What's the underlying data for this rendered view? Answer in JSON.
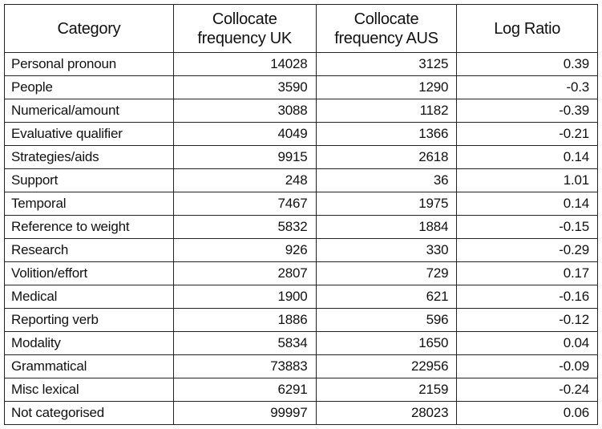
{
  "table": {
    "headers": [
      "Category",
      "Collocate frequency UK",
      "Collocate frequency AUS",
      "Log Ratio"
    ],
    "header_lines": [
      [
        "Category"
      ],
      [
        "Collocate",
        "frequency UK"
      ],
      [
        "Collocate",
        "frequency AUS"
      ],
      [
        "Log Ratio"
      ]
    ],
    "rows": [
      [
        "Personal pronoun",
        "14028",
        "3125",
        "0.39"
      ],
      [
        "People",
        "3590",
        "1290",
        "-0.3"
      ],
      [
        "Numerical/amount",
        "3088",
        "1182",
        "-0.39"
      ],
      [
        "Evaluative qualifier",
        "4049",
        "1366",
        "-0.21"
      ],
      [
        "Strategies/aids",
        "9915",
        "2618",
        "0.14"
      ],
      [
        "Support",
        "248",
        "36",
        "1.01"
      ],
      [
        "Temporal",
        "7467",
        "1975",
        "0.14"
      ],
      [
        "Reference to weight",
        "5832",
        "1884",
        "-0.15"
      ],
      [
        "Research",
        "926",
        "330",
        "-0.29"
      ],
      [
        "Volition/effort",
        "2807",
        "729",
        "0.17"
      ],
      [
        "Medical",
        "1900",
        "621",
        "-0.16"
      ],
      [
        "Reporting verb",
        "1886",
        "596",
        "-0.12"
      ],
      [
        "Modality",
        "5834",
        "1650",
        "0.04"
      ],
      [
        "Grammatical",
        "73883",
        "22956",
        "-0.09"
      ],
      [
        "Misc lexical",
        "6291",
        "2159",
        "-0.24"
      ],
      [
        "Not categorised",
        "99997",
        "28023",
        "0.06"
      ]
    ]
  }
}
